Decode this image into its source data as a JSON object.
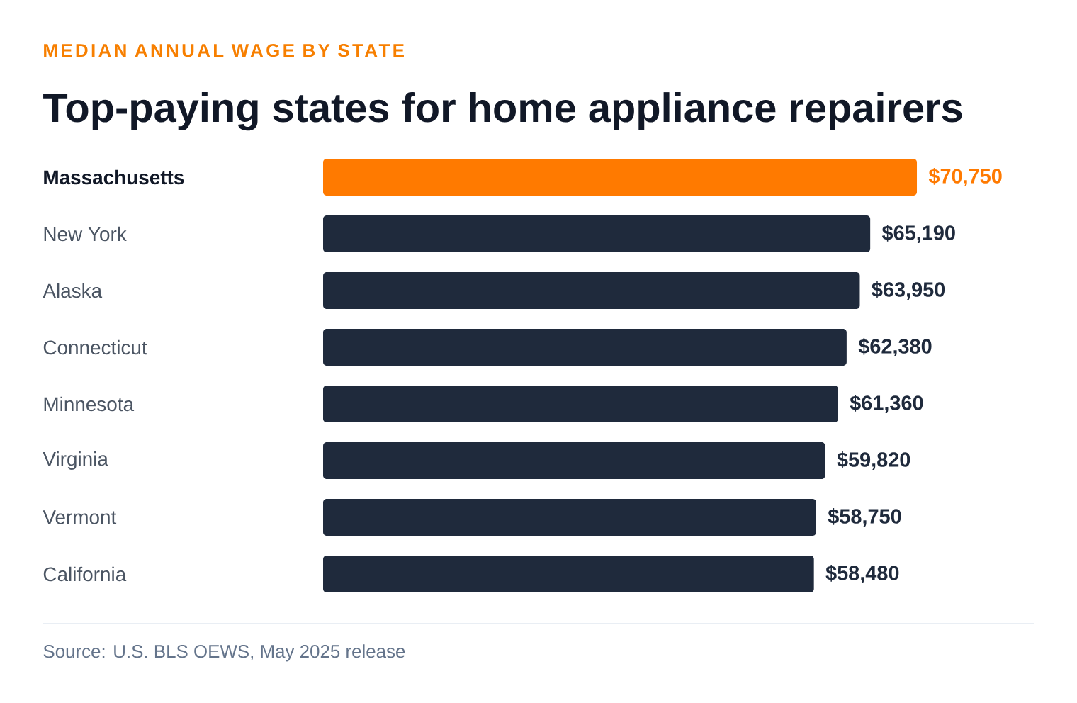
{
  "chart_data": {
    "type": "bar",
    "orientation": "horizontal",
    "subtitle": "MEDIAN ANNUAL WAGE BY STATE",
    "title": "Top-paying states for home appliance repairers",
    "categories": [
      "Massachusetts",
      "New York",
      "Alaska",
      "Connecticut",
      "Minnesota",
      "Virginia",
      "Vermont",
      "California"
    ],
    "values": [
      70750,
      65190,
      63950,
      62380,
      61360,
      59820,
      58750,
      58480
    ],
    "value_labels": [
      "$70,750",
      "$65,190",
      "$63,950",
      "$62,380",
      "$61,360",
      "$59,820",
      "$58,750",
      "$58,480"
    ],
    "colors": [
      "#ff7a00",
      "#1f2a3c",
      "#1f2a3c",
      "#1f2a3c",
      "#1f2a3c",
      "#1f2a3c",
      "#1f2a3c",
      "#1f2a3c"
    ],
    "annotations": [
      "Source: U.S. BLS OEWS, May 2025 release"
    ]
  }
}
